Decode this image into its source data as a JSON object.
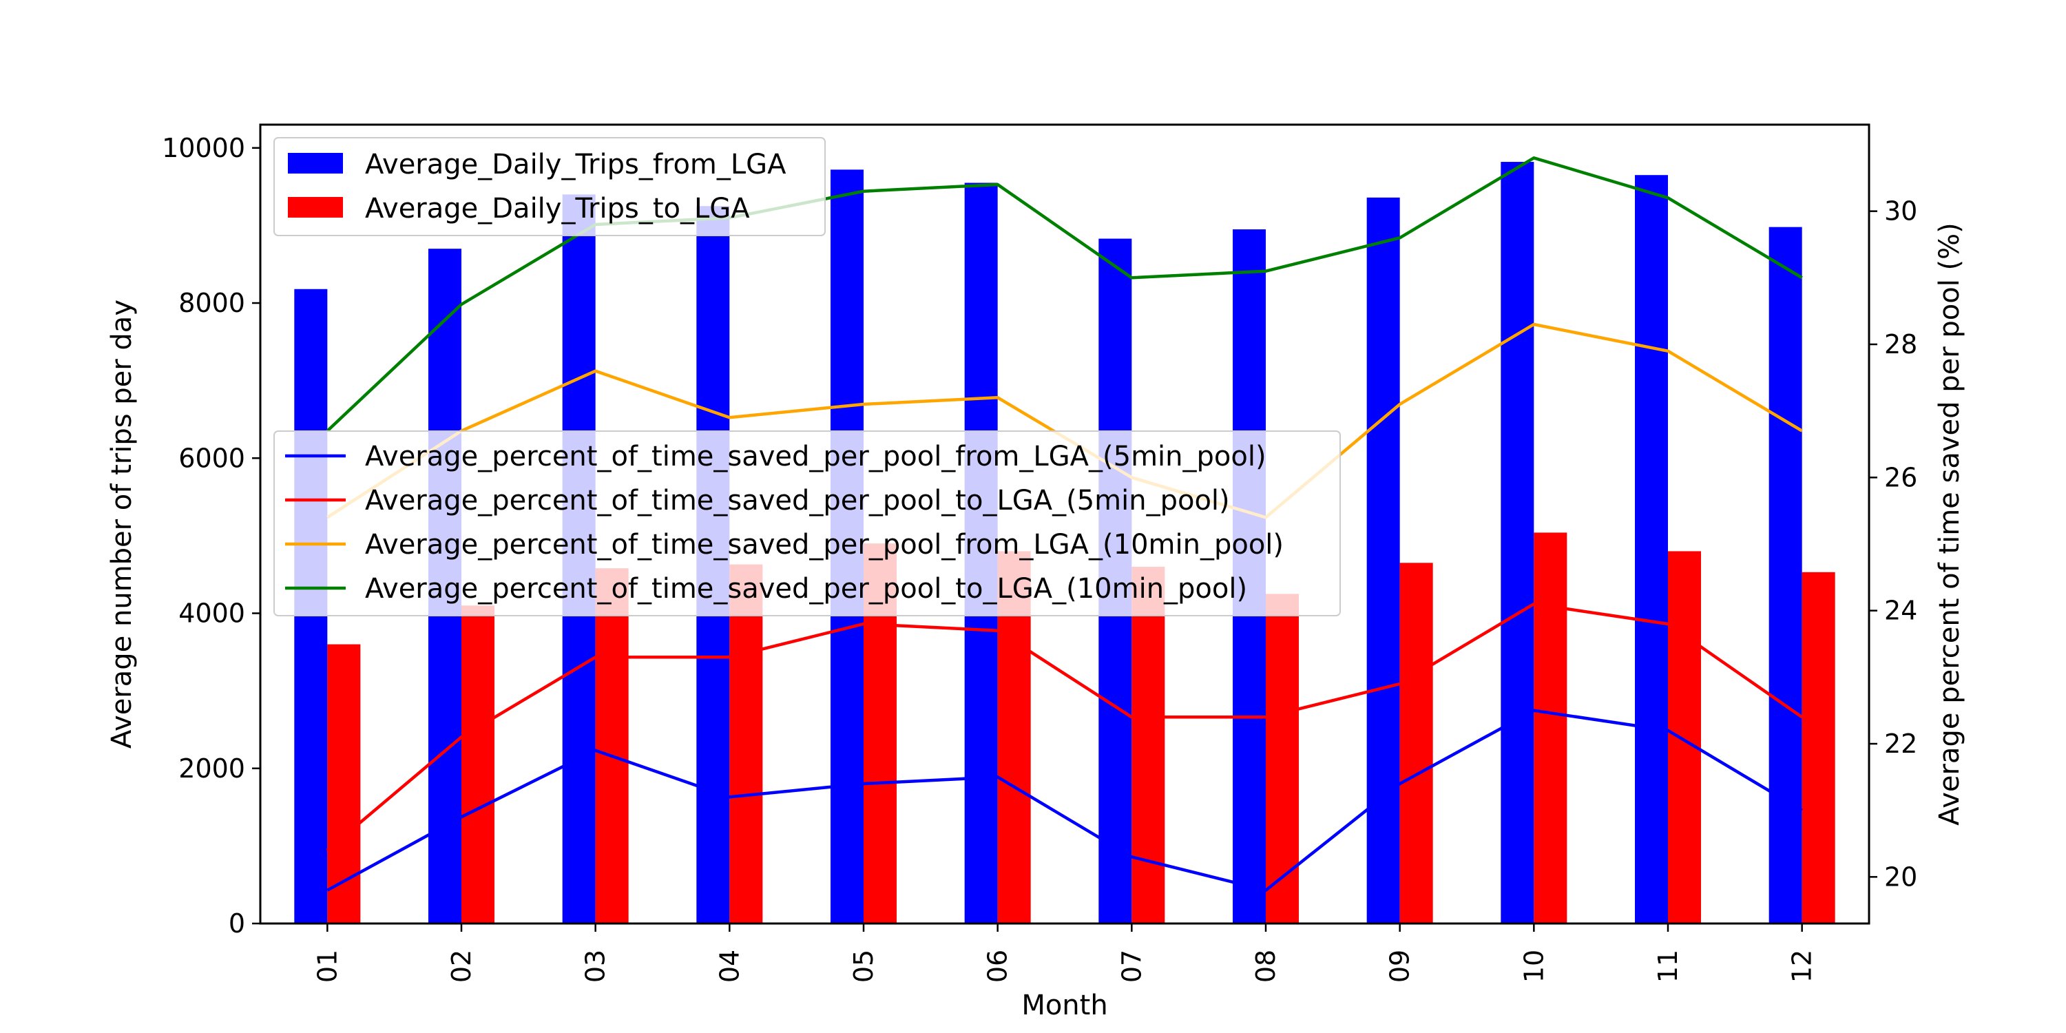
{
  "chart_data": {
    "type": "bar",
    "xlabel": "Month",
    "ylabel": "Average number of trips per day",
    "y2label": "Average percent of time saved per pool (%)",
    "categories": [
      "01",
      "02",
      "03",
      "04",
      "05",
      "06",
      "07",
      "08",
      "09",
      "10",
      "11",
      "12"
    ],
    "ylim": [
      0,
      10300
    ],
    "y_ticks": [
      0,
      2000,
      4000,
      6000,
      8000,
      10000
    ],
    "y2lim": [
      19.3,
      31.3
    ],
    "y2_ticks": [
      20,
      22,
      24,
      26,
      28,
      30
    ],
    "bar_series": [
      {
        "name": "Average_Daily_Trips_from_LGA",
        "color": "#0000ff",
        "values": [
          8180,
          8700,
          9400,
          9250,
          9720,
          9550,
          8830,
          8950,
          9360,
          9820,
          9650,
          8980
        ]
      },
      {
        "name": "Average_Daily_Trips_to_LGA",
        "color": "#ff0000",
        "values": [
          3600,
          4100,
          4580,
          4630,
          4900,
          4800,
          4600,
          4250,
          4650,
          5040,
          4800,
          4530
        ]
      }
    ],
    "line_series": [
      {
        "name": "Average_percent_of_time_saved_per_pool_from_LGA_(5min_pool)",
        "color": "#0000ff",
        "values": [
          19.8,
          20.9,
          21.9,
          21.2,
          21.4,
          21.5,
          20.3,
          19.8,
          21.4,
          22.5,
          22.2,
          21.0
        ]
      },
      {
        "name": "Average_percent_of_time_saved_per_pool_to_LGA_(5min_pool)",
        "color": "#ff0000",
        "values": [
          20.4,
          22.1,
          23.3,
          23.3,
          23.8,
          23.7,
          22.4,
          22.4,
          22.9,
          24.1,
          23.8,
          22.4
        ]
      },
      {
        "name": "Average_percent_of_time_saved_per_pool_from_LGA_(10min_pool)",
        "color": "#ffa500",
        "values": [
          25.4,
          26.7,
          27.6,
          26.9,
          27.1,
          27.2,
          26.0,
          25.4,
          27.1,
          28.3,
          27.9,
          26.7
        ]
      },
      {
        "name": "Average_percent_of_time_saved_per_pool_to_LGA_(10min_pool)",
        "color": "#008000",
        "values": [
          26.7,
          28.6,
          29.8,
          29.9,
          30.3,
          30.4,
          29.0,
          29.1,
          29.6,
          30.8,
          30.2,
          29.0
        ]
      }
    ],
    "bar_legend_position": "upper-left",
    "line_legend_position": "center-left",
    "grid": false
  }
}
